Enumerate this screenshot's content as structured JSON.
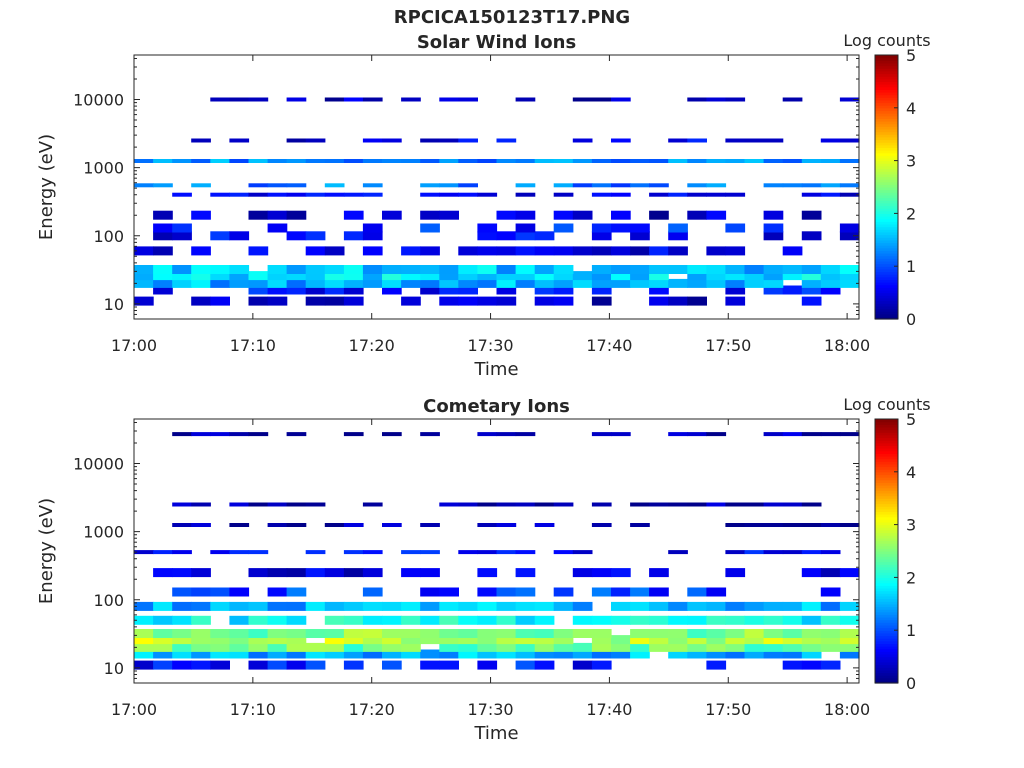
{
  "title": "RPCICA150123T17.PNG",
  "colorbar_label": "Log counts",
  "colorbar_ticks": [
    "0",
    "1",
    "2",
    "3",
    "4",
    "5"
  ],
  "chart_data": [
    {
      "type": "heatmap",
      "title": "Solar Wind Ions",
      "xlabel": "Time",
      "ylabel": "Energy (eV)",
      "x_ticks": [
        "17:00",
        "17:10",
        "17:20",
        "17:30",
        "17:40",
        "17:50",
        "18:00"
      ],
      "y_ticks": [
        "10",
        "100",
        "1000",
        "10000"
      ],
      "y_scale": "log",
      "ylim": [
        6,
        45000
      ],
      "xlim": [
        "17:00",
        "18:01"
      ],
      "colorbar": {
        "label": "Log counts",
        "range": [
          0,
          5
        ],
        "colormap": "jet"
      },
      "energy_bands": [
        {
          "energy": 11,
          "typical_log_counts": 0.4
        },
        {
          "energy": 16,
          "typical_log_counts": 0.7
        },
        {
          "energy": 20,
          "typical_log_counts": 1.5
        },
        {
          "energy": 26,
          "typical_log_counts": 1.7
        },
        {
          "energy": 32,
          "typical_log_counts": 1.6
        },
        {
          "energy": 60,
          "typical_log_counts": 0.5
        },
        {
          "energy": 100,
          "typical_log_counts": 0.6
        },
        {
          "energy": 130,
          "typical_log_counts": 0.8
        },
        {
          "energy": 200,
          "typical_log_counts": 0.4
        },
        {
          "energy": 400,
          "typical_log_counts": 0.6
        },
        {
          "energy": 550,
          "typical_log_counts": 1.2
        },
        {
          "energy": 1250,
          "typical_log_counts": 1.3
        },
        {
          "energy": 2500,
          "typical_log_counts": 0.5
        },
        {
          "energy": 10000,
          "typical_log_counts": 0.3
        }
      ]
    },
    {
      "type": "heatmap",
      "title": "Cometary Ions",
      "xlabel": "Time",
      "ylabel": "Energy (eV)",
      "x_ticks": [
        "17:00",
        "17:10",
        "17:20",
        "17:30",
        "17:40",
        "17:50",
        "18:00"
      ],
      "y_ticks": [
        "10",
        "100",
        "1000",
        "10000"
      ],
      "y_scale": "log",
      "ylim": [
        6,
        45000
      ],
      "xlim": [
        "17:00",
        "18:01"
      ],
      "colorbar": {
        "label": "Log counts",
        "range": [
          0,
          5
        ],
        "colormap": "jet"
      },
      "energy_bands": [
        {
          "energy": 11,
          "typical_log_counts": 0.7
        },
        {
          "energy": 16,
          "typical_log_counts": 1.5
        },
        {
          "energy": 20,
          "typical_log_counts": 2.4
        },
        {
          "energy": 26,
          "typical_log_counts": 2.8
        },
        {
          "energy": 32,
          "typical_log_counts": 2.5
        },
        {
          "energy": 50,
          "typical_log_counts": 1.9
        },
        {
          "energy": 80,
          "typical_log_counts": 1.5
        },
        {
          "energy": 130,
          "typical_log_counts": 0.9
        },
        {
          "energy": 250,
          "typical_log_counts": 0.4
        },
        {
          "energy": 500,
          "typical_log_counts": 0.6
        },
        {
          "energy": 1250,
          "typical_log_counts": 0.2
        },
        {
          "energy": 2500,
          "typical_log_counts": 0.2
        },
        {
          "energy": 27000,
          "typical_log_counts": 0.2
        }
      ]
    }
  ]
}
